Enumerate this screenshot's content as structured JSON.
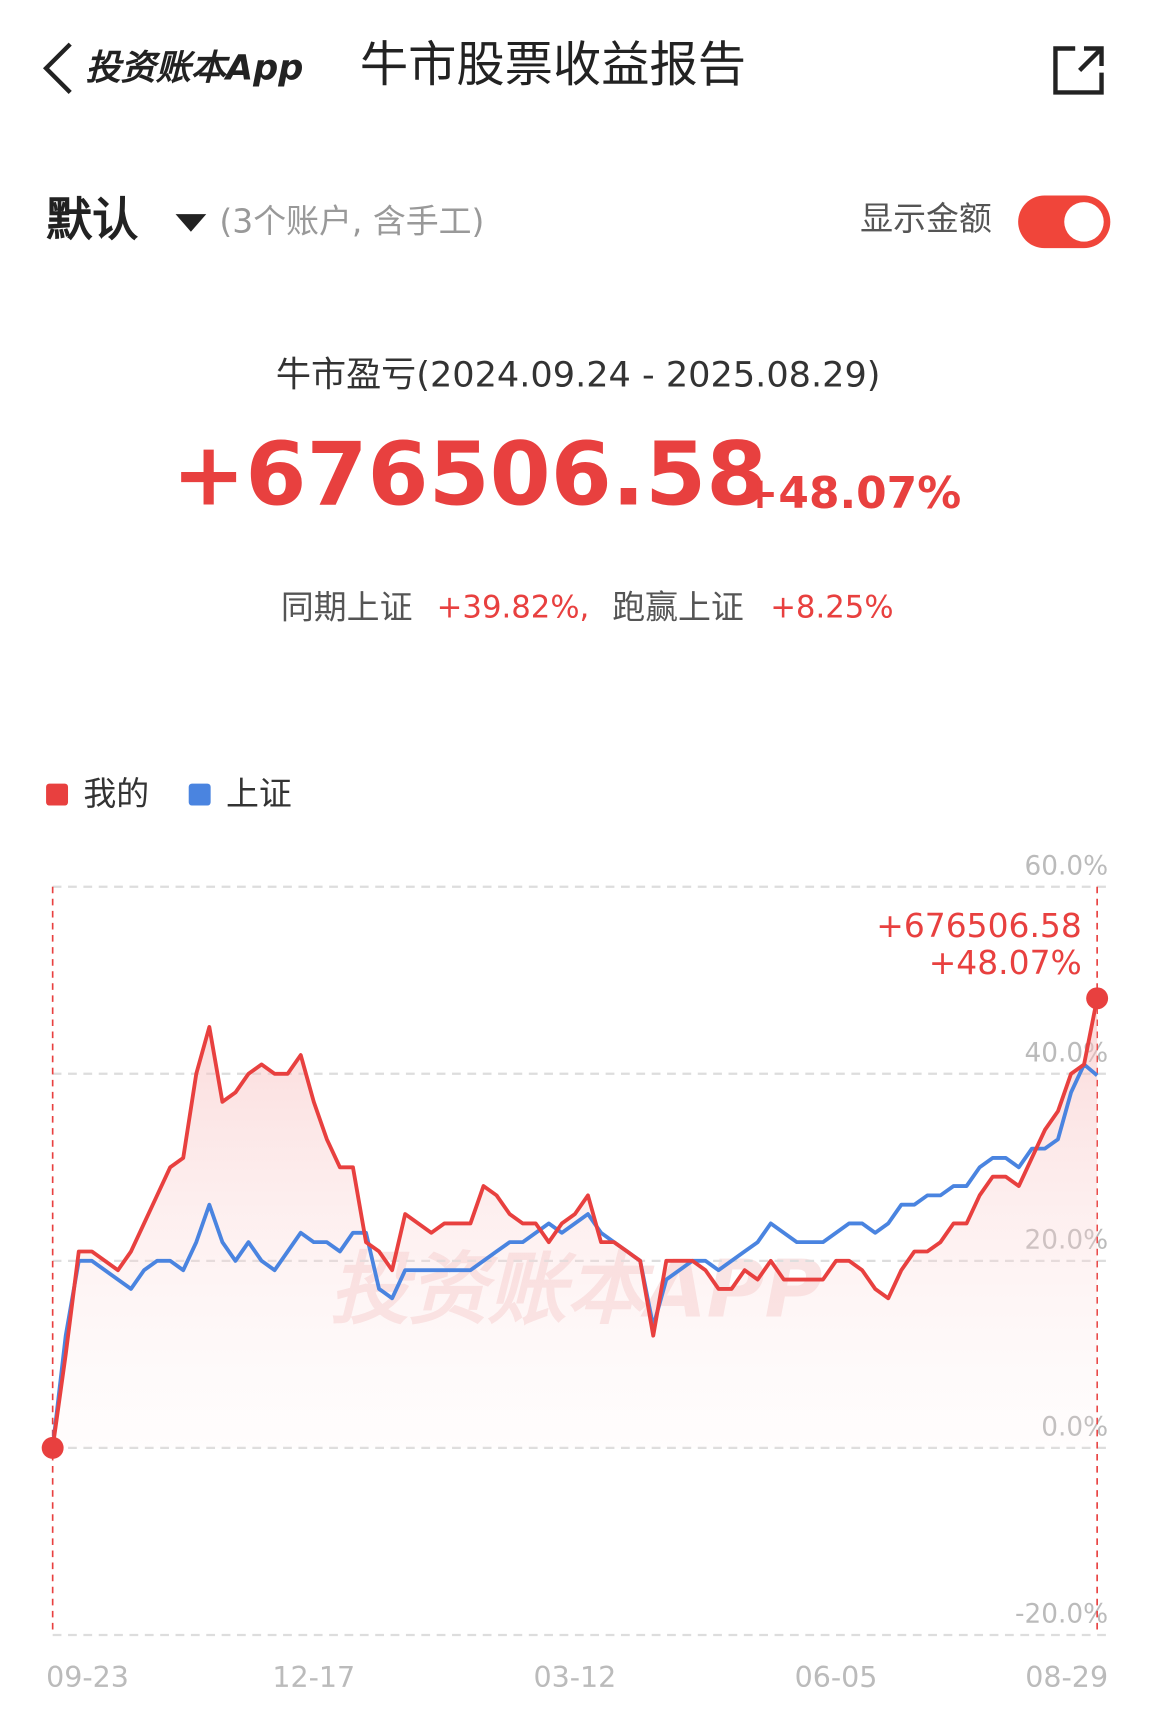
{
  "header": {
    "back_label": "投资账本App",
    "title": "牛市股票收益报告"
  },
  "account": {
    "name": "默认",
    "note": "(3个账户, 含手工)",
    "toggle_label": "显示金额"
  },
  "summary": {
    "period": "牛市盈亏(2024.09.24 - 2025.08.29)",
    "amount": "+676506.58",
    "percent": "+48.07%",
    "compare_label": "同期上证",
    "compare_value": "+39.82%,",
    "beat_label": "跑赢上证",
    "beat_value": "+8.25%"
  },
  "watermark": "投资账本APP",
  "chart_data": {
    "type": "line",
    "categories": [
      "09-23",
      null,
      null,
      null,
      null,
      null,
      null,
      null,
      null,
      null,
      null,
      null,
      null,
      null,
      null,
      null,
      null,
      null,
      null,
      null,
      "12-17",
      null,
      null,
      null,
      null,
      null,
      null,
      null,
      null,
      null,
      null,
      null,
      null,
      null,
      null,
      null,
      null,
      null,
      null,
      null,
      "03-12",
      null,
      null,
      null,
      null,
      null,
      null,
      null,
      null,
      null,
      null,
      null,
      null,
      null,
      null,
      null,
      null,
      null,
      null,
      null,
      "06-05",
      null,
      null,
      null,
      null,
      null,
      null,
      null,
      null,
      null,
      null,
      null,
      null,
      null,
      null,
      null,
      null,
      null,
      null,
      null,
      "08-29"
    ],
    "series": [
      {
        "name": "我的",
        "color": "#e8403f",
        "values": [
          0,
          10,
          21,
          21,
          20,
          19,
          21,
          24,
          27,
          30,
          31,
          40,
          45,
          37,
          38,
          40,
          41,
          40,
          40,
          42,
          37,
          33,
          30,
          30,
          22,
          21,
          19,
          25,
          24,
          23,
          24,
          24,
          24,
          28,
          27,
          25,
          24,
          24,
          22,
          24,
          25,
          27,
          22,
          22,
          21,
          20,
          12,
          20,
          20,
          20,
          19,
          17,
          17,
          19,
          18,
          20,
          18,
          18,
          18,
          18,
          20,
          20,
          19,
          17,
          16,
          19,
          21,
          21,
          22,
          24,
          24,
          27,
          29,
          29,
          28,
          31,
          34,
          36,
          40,
          41,
          48.07
        ]
      },
      {
        "name": "上证",
        "color": "#4a84e0",
        "values": [
          0,
          12,
          20,
          20,
          19,
          18,
          17,
          19,
          20,
          20,
          19,
          22,
          26,
          22,
          20,
          22,
          20,
          19,
          21,
          23,
          22,
          22,
          21,
          23,
          23,
          17,
          16,
          19,
          19,
          19,
          19,
          19,
          19,
          20,
          21,
          22,
          22,
          23,
          24,
          23,
          24,
          25,
          23,
          22,
          21,
          20,
          13,
          18,
          19,
          20,
          20,
          19,
          20,
          21,
          22,
          24,
          23,
          22,
          22,
          22,
          23,
          24,
          24,
          23,
          24,
          26,
          26,
          27,
          27,
          28,
          28,
          30,
          31,
          31,
          30,
          32,
          32,
          33,
          38,
          41,
          39.82
        ]
      }
    ],
    "annotations": [
      "+676506.58",
      "+48.07%"
    ],
    "ylim": [
      -20,
      60
    ],
    "yticks": [
      {
        "value": -20,
        "label": "-20.0%"
      },
      {
        "value": 0,
        "label": "0.0%"
      },
      {
        "value": 20,
        "label": "20.0%"
      },
      {
        "value": 40,
        "label": "40.0%"
      },
      {
        "value": 60,
        "label": "60.0%"
      }
    ],
    "grid": true
  }
}
